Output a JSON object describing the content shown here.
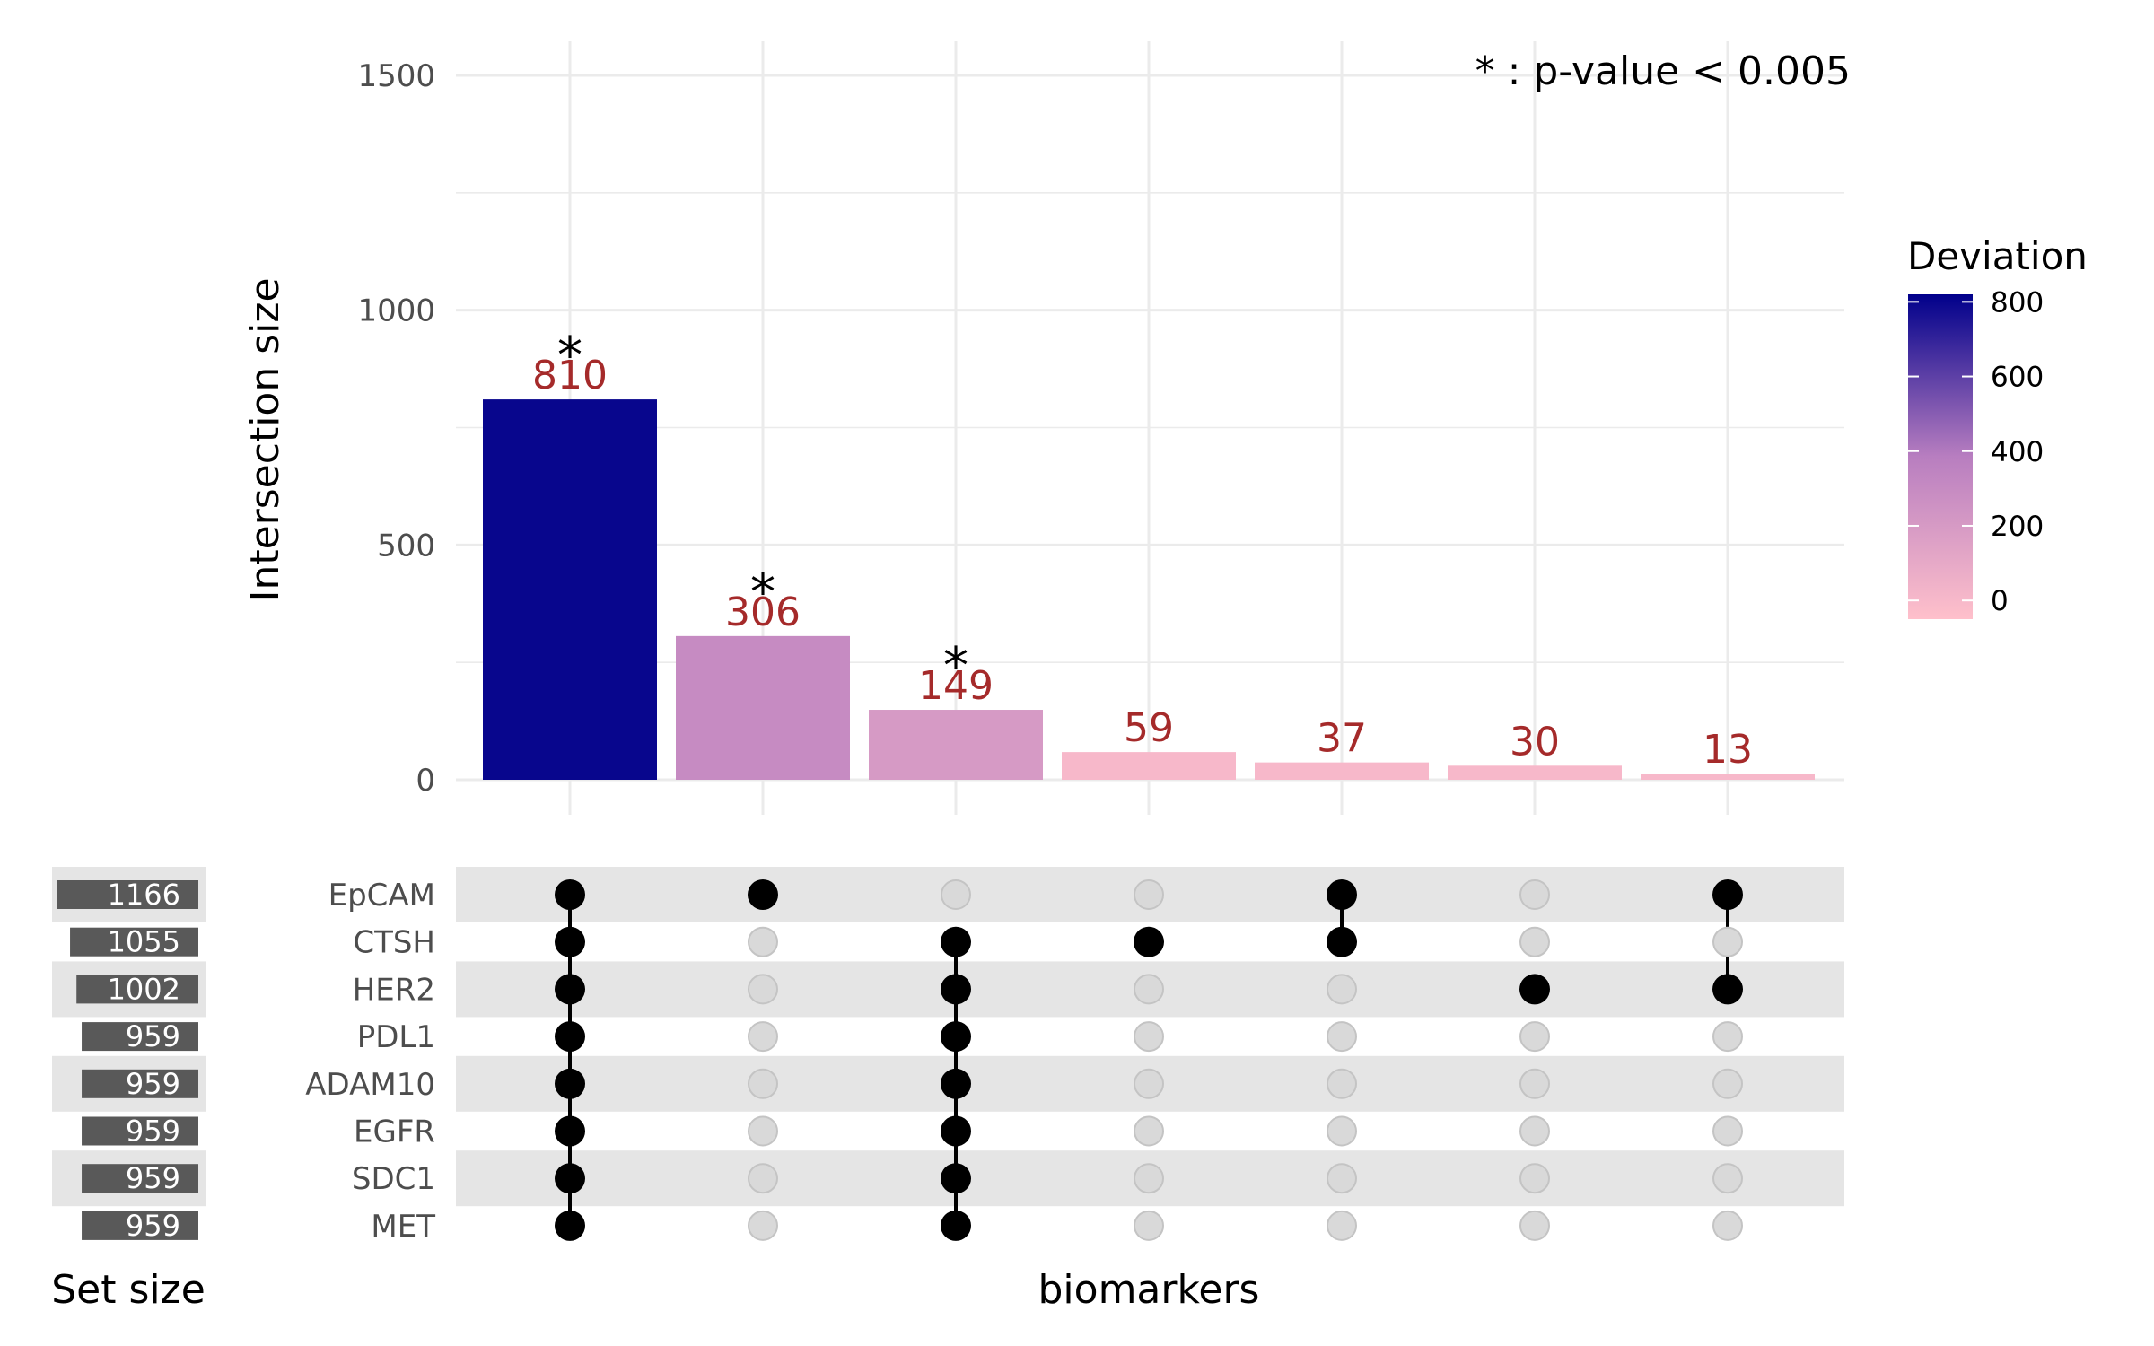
{
  "chart_data": {
    "type": "bar",
    "subtype": "upset",
    "annotation": "* : p-value < 0.005",
    "ylabel": "Intersection size",
    "xlabel": "biomarkers",
    "set_size_label": "Set size",
    "ylim": [
      0,
      1500
    ],
    "yticks": [
      "0",
      "500",
      "1000",
      "1500"
    ],
    "grid": true,
    "sets": [
      "EpCAM",
      "CTSH",
      "HER2",
      "PDL1",
      "ADAM10",
      "EGFR",
      "SDC1",
      "MET"
    ],
    "set_sizes": [
      1166,
      1055,
      1002,
      959,
      959,
      959,
      959,
      959
    ],
    "intersections": [
      {
        "value": 810,
        "deviation": 800,
        "significant": true,
        "members": [
          "EpCAM",
          "CTSH",
          "HER2",
          "PDL1",
          "ADAM10",
          "EGFR",
          "SDC1",
          "MET"
        ]
      },
      {
        "value": 306,
        "deviation": 300,
        "significant": true,
        "members": [
          "EpCAM"
        ]
      },
      {
        "value": 149,
        "deviation": 200,
        "significant": true,
        "members": [
          "CTSH",
          "HER2",
          "PDL1",
          "ADAM10",
          "EGFR",
          "SDC1",
          "MET"
        ]
      },
      {
        "value": 59,
        "deviation": 0,
        "significant": false,
        "members": [
          "CTSH"
        ]
      },
      {
        "value": 37,
        "deviation": 0,
        "significant": false,
        "members": [
          "EpCAM",
          "CTSH"
        ]
      },
      {
        "value": 30,
        "deviation": 0,
        "significant": false,
        "members": [
          "HER2"
        ]
      },
      {
        "value": 13,
        "deviation": 0,
        "significant": false,
        "members": [
          "EpCAM",
          "HER2"
        ]
      }
    ],
    "star": "*",
    "legend": {
      "title": "Deviation",
      "position": "right",
      "ticks": [
        "0",
        "200",
        "400",
        "600",
        "800"
      ],
      "range": [
        -50,
        820
      ],
      "low_color": "#ffc0cb",
      "mid_color": "#b87ec0",
      "high_color": "#00008b"
    },
    "colors": {
      "label": "#a52a2a",
      "active_dot": "#000000",
      "inactive_dot": "#d9d9d9",
      "stripe": "#e5e5e5",
      "size_bar": "#595959",
      "grid": "#ebebeb"
    }
  }
}
